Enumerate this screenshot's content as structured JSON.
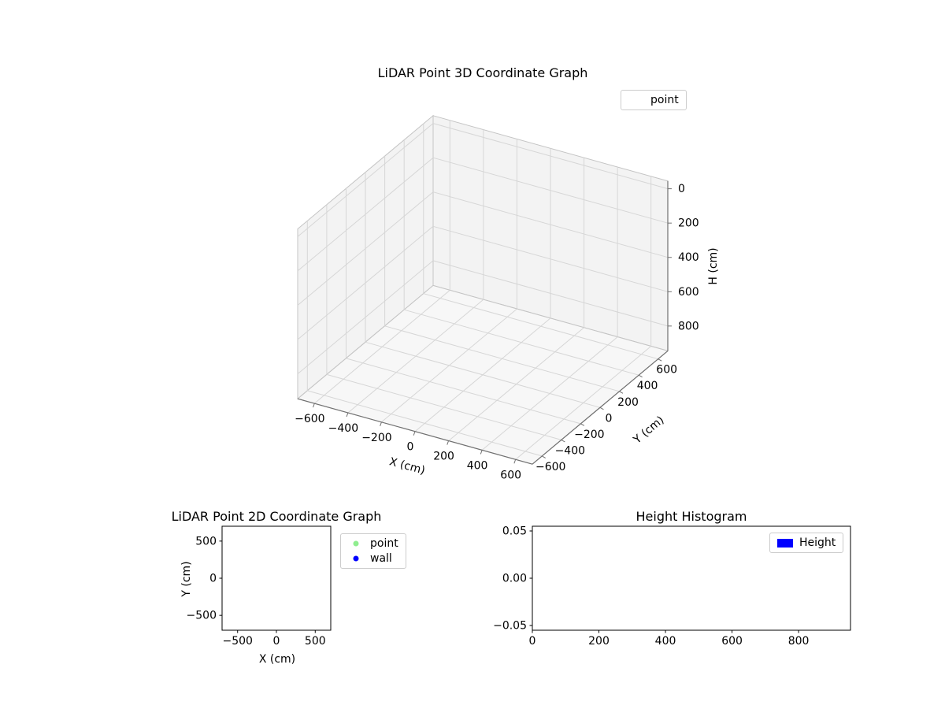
{
  "colors": {
    "background": "#ffffff",
    "pane": "#f3f3f3",
    "pane_floor": "#f7f7f7",
    "grid": "#d6d6d6",
    "pane_edge": "#c4c4c4",
    "axis_line": "#707070",
    "tick": "#707070",
    "spine": "#000000",
    "point_marker": "#90ee90",
    "wall_marker": "#0000ff",
    "height_bar": "#0000ff"
  },
  "chart_data": [
    {
      "id": "lidar-3d",
      "type": "scatter3d",
      "title": "LiDAR Point 3D Coordinate Graph",
      "xlabel": "X (cm)",
      "ylabel": "Y (cm)",
      "zlabel": "H (cm)",
      "xlim": [
        -700,
        700
      ],
      "ylim": [
        -700,
        700
      ],
      "zlim": [
        -45,
        945
      ],
      "zaxis_inverted": true,
      "xticks": [
        -600,
        -400,
        -200,
        0,
        200,
        400,
        600
      ],
      "xtick_labels": [
        "−600",
        "−400",
        "−200",
        "0",
        "200",
        "400",
        "600"
      ],
      "yticks": [
        -600,
        -400,
        -200,
        0,
        200,
        400,
        600
      ],
      "ytick_labels": [
        "−600",
        "−400",
        "−200",
        "0",
        "200",
        "400",
        "600"
      ],
      "zticks": [
        0,
        200,
        400,
        600,
        800
      ],
      "ztick_labels": [
        "0",
        "200",
        "400",
        "600",
        "800"
      ],
      "grid": true,
      "legend": {
        "position": "upper right",
        "items": [
          {
            "label": "point",
            "marker": "none"
          }
        ]
      },
      "series": [
        {
          "name": "point",
          "points": []
        }
      ]
    },
    {
      "id": "lidar-2d",
      "type": "scatter",
      "title": "LiDAR Point 2D Coordinate Graph",
      "xlabel": "X (cm)",
      "ylabel": "Y (cm)",
      "xlim": [
        -700,
        700
      ],
      "ylim": [
        -700,
        700
      ],
      "xticks": [
        -500,
        0,
        500
      ],
      "xtick_labels": [
        "−500",
        "0",
        "500"
      ],
      "yticks": [
        -500,
        0,
        500
      ],
      "ytick_labels": [
        "−500",
        "0",
        "500"
      ],
      "grid": false,
      "legend": {
        "position": "outside upper right",
        "items": [
          {
            "label": "point",
            "marker": "dot",
            "color": "#90ee90"
          },
          {
            "label": "wall",
            "marker": "dot",
            "color": "#0000ff"
          }
        ]
      },
      "series": [
        {
          "name": "point",
          "points": []
        },
        {
          "name": "wall",
          "points": []
        }
      ]
    },
    {
      "id": "height-histogram",
      "type": "bar",
      "title": "Height Histogram",
      "xlabel": "",
      "ylabel": "",
      "xlim": [
        0,
        956
      ],
      "ylim": [
        -0.055,
        0.055
      ],
      "xticks": [
        0,
        200,
        400,
        600,
        800
      ],
      "xtick_labels": [
        "0",
        "200",
        "400",
        "600",
        "800"
      ],
      "yticks": [
        -0.05,
        0,
        0.05
      ],
      "ytick_labels": [
        "−0.05",
        "0.00",
        "0.05"
      ],
      "grid": false,
      "legend": {
        "position": "upper right",
        "items": [
          {
            "label": "Height",
            "marker": "rect",
            "color": "#0000ff"
          }
        ]
      },
      "series": [
        {
          "name": "Height",
          "values": []
        }
      ]
    }
  ]
}
